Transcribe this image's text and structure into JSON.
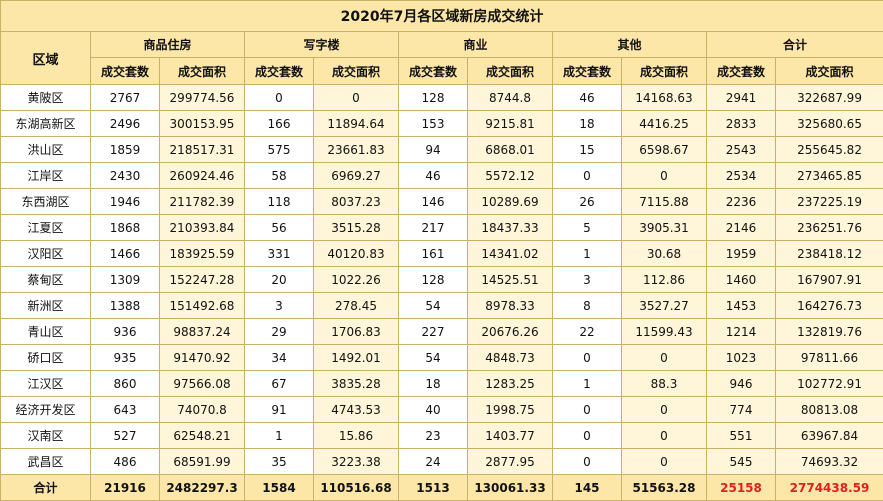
{
  "title": "2020年7月各区域新房成交统计",
  "region_header": "区域",
  "groups": [
    "商品住房",
    "写字楼",
    "商业",
    "其他",
    "合计"
  ],
  "sub_headers": [
    "成交套数",
    "成交面积"
  ],
  "rows": [
    {
      "name": "黄陂区",
      "values": [
        "2767",
        "299774.56",
        "0",
        "0",
        "128",
        "8744.8",
        "46",
        "14168.63",
        "2941",
        "322687.99"
      ]
    },
    {
      "name": "东湖高新区",
      "values": [
        "2496",
        "300153.95",
        "166",
        "11894.64",
        "153",
        "9215.81",
        "18",
        "4416.25",
        "2833",
        "325680.65"
      ]
    },
    {
      "name": "洪山区",
      "values": [
        "1859",
        "218517.31",
        "575",
        "23661.83",
        "94",
        "6868.01",
        "15",
        "6598.67",
        "2543",
        "255645.82"
      ]
    },
    {
      "name": "江岸区",
      "values": [
        "2430",
        "260924.46",
        "58",
        "6969.27",
        "46",
        "5572.12",
        "0",
        "0",
        "2534",
        "273465.85"
      ]
    },
    {
      "name": "东西湖区",
      "values": [
        "1946",
        "211782.39",
        "118",
        "8037.23",
        "146",
        "10289.69",
        "26",
        "7115.88",
        "2236",
        "237225.19"
      ]
    },
    {
      "name": "江夏区",
      "values": [
        "1868",
        "210393.84",
        "56",
        "3515.28",
        "217",
        "18437.33",
        "5",
        "3905.31",
        "2146",
        "236251.76"
      ]
    },
    {
      "name": "汉阳区",
      "values": [
        "1466",
        "183925.59",
        "331",
        "40120.83",
        "161",
        "14341.02",
        "1",
        "30.68",
        "1959",
        "238418.12"
      ]
    },
    {
      "name": "蔡甸区",
      "values": [
        "1309",
        "152247.28",
        "20",
        "1022.26",
        "128",
        "14525.51",
        "3",
        "112.86",
        "1460",
        "167907.91"
      ]
    },
    {
      "name": "新洲区",
      "values": [
        "1388",
        "151492.68",
        "3",
        "278.45",
        "54",
        "8978.33",
        "8",
        "3527.27",
        "1453",
        "164276.73"
      ]
    },
    {
      "name": "青山区",
      "values": [
        "936",
        "98837.24",
        "29",
        "1706.83",
        "227",
        "20676.26",
        "22",
        "11599.43",
        "1214",
        "132819.76"
      ]
    },
    {
      "name": "硚口区",
      "values": [
        "935",
        "91470.92",
        "34",
        "1492.01",
        "54",
        "4848.73",
        "0",
        "0",
        "1023",
        "97811.66"
      ]
    },
    {
      "name": "江汉区",
      "values": [
        "860",
        "97566.08",
        "67",
        "3835.28",
        "18",
        "1283.25",
        "1",
        "88.3",
        "946",
        "102772.91"
      ]
    },
    {
      "name": "经济开发区",
      "values": [
        "643",
        "74070.8",
        "91",
        "4743.53",
        "40",
        "1998.75",
        "0",
        "0",
        "774",
        "80813.08"
      ]
    },
    {
      "name": "汉南区",
      "values": [
        "527",
        "62548.21",
        "1",
        "15.86",
        "23",
        "1403.77",
        "0",
        "0",
        "551",
        "63967.84"
      ]
    },
    {
      "name": "武昌区",
      "values": [
        "486",
        "68591.99",
        "35",
        "3223.38",
        "24",
        "2877.95",
        "0",
        "0",
        "545",
        "74693.32"
      ]
    }
  ],
  "total": {
    "name": "合计",
    "values": [
      "21916",
      "2482297.3",
      "1584",
      "110516.68",
      "1513",
      "130061.33",
      "145",
      "51563.28",
      "25158",
      "2774438.59"
    ]
  },
  "colors": {
    "header_bg": "#fce7a8",
    "cell_shade": "#fff5d8",
    "border": "#c9b16a",
    "accent": "#e02020"
  }
}
